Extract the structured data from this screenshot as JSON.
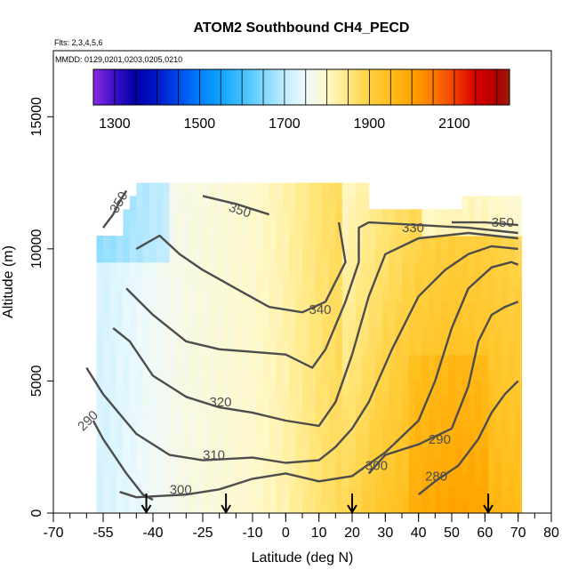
{
  "chart_data": {
    "type": "heatmap",
    "title": "ATOM2 Southbound CH4_PECD",
    "annotations": [
      "Flts: 2,3,4,5,6",
      "MMDD: 0129,0201,0203,0205,0210"
    ],
    "xlabel": "Latitude (deg N)",
    "ylabel": "Altitude (m)",
    "xlim": [
      -70,
      80
    ],
    "ylim": [
      0,
      17500
    ],
    "xticks": [
      -70,
      -55,
      -40,
      -25,
      -10,
      0,
      10,
      20,
      30,
      40,
      50,
      60,
      70,
      80
    ],
    "yticks": [
      0,
      5000,
      10000,
      15000
    ],
    "grid": false,
    "colorbar": {
      "ticks": [
        1300,
        1500,
        1700,
        1900,
        2100
      ],
      "range": [
        1250,
        2230
      ],
      "stops": [
        {
          "v": 1250,
          "c": "#8a2be2"
        },
        {
          "v": 1300,
          "c": "#3a10c8"
        },
        {
          "v": 1350,
          "c": "#0000a8"
        },
        {
          "v": 1400,
          "c": "#0018c8"
        },
        {
          "v": 1450,
          "c": "#0048e8"
        },
        {
          "v": 1500,
          "c": "#0080ff"
        },
        {
          "v": 1550,
          "c": "#10a4ff"
        },
        {
          "v": 1600,
          "c": "#40c0ff"
        },
        {
          "v": 1650,
          "c": "#80d8ff"
        },
        {
          "v": 1700,
          "c": "#c0ecff"
        },
        {
          "v": 1750,
          "c": "#eefafc"
        },
        {
          "v": 1800,
          "c": "#fff8c8"
        },
        {
          "v": 1850,
          "c": "#ffe880"
        },
        {
          "v": 1900,
          "c": "#ffd040"
        },
        {
          "v": 1950,
          "c": "#ffbe1c"
        },
        {
          "v": 2000,
          "c": "#ffa400"
        },
        {
          "v": 2050,
          "c": "#ff7800"
        },
        {
          "v": 2100,
          "c": "#f04000"
        },
        {
          "v": 2150,
          "c": "#d80000"
        },
        {
          "v": 2200,
          "c": "#b00000"
        },
        {
          "v": 2230,
          "c": "#a01c10"
        }
      ]
    },
    "colormap_lat": [
      -55,
      -45,
      -30,
      -10,
      0,
      10,
      20,
      30,
      40,
      50,
      60,
      70
    ],
    "colormap_value": [
      1725,
      1745,
      1775,
      1795,
      1820,
      1860,
      1890,
      1930,
      1960,
      1975,
      1970,
      1955
    ],
    "contours": [
      {
        "label": "280",
        "points": [
          [
            40,
            700
          ],
          [
            45,
            1200
          ],
          [
            52,
            1800
          ],
          [
            58,
            2800
          ],
          [
            62,
            3800
          ],
          [
            66,
            4500
          ],
          [
            70,
            5000
          ]
        ]
      },
      {
        "label": "290",
        "points": [
          [
            -58,
            3500
          ],
          [
            -55,
            2800
          ],
          [
            -48,
            1500
          ],
          [
            -43,
            700
          ],
          [
            -40,
            500
          ]
        ],
        "label2": "290"
      },
      {
        "label": "290",
        "points": [
          [
            25,
            1500
          ],
          [
            30,
            2200
          ],
          [
            40,
            2600
          ],
          [
            50,
            3200
          ],
          [
            55,
            4800
          ],
          [
            58,
            6500
          ],
          [
            62,
            7500
          ],
          [
            66,
            7800
          ],
          [
            70,
            8000
          ]
        ]
      },
      {
        "label": "300",
        "points": [
          [
            -50,
            800
          ],
          [
            -45,
            600
          ],
          [
            -30,
            700
          ],
          [
            -20,
            900
          ],
          [
            -10,
            1300
          ],
          [
            0,
            1500
          ],
          [
            10,
            1200
          ],
          [
            20,
            1400
          ],
          [
            30,
            2300
          ],
          [
            40,
            3500
          ],
          [
            45,
            5000
          ],
          [
            50,
            7000
          ],
          [
            55,
            8500
          ],
          [
            62,
            9300
          ],
          [
            68,
            9500
          ],
          [
            70,
            9400
          ]
        ]
      },
      {
        "label": "310",
        "points": [
          [
            -60,
            5500
          ],
          [
            -55,
            4500
          ],
          [
            -45,
            3000
          ],
          [
            -35,
            2200
          ],
          [
            -25,
            2000
          ],
          [
            -10,
            2100
          ],
          [
            0,
            1900
          ],
          [
            10,
            2000
          ],
          [
            15,
            2500
          ],
          [
            20,
            3200
          ],
          [
            25,
            4200
          ],
          [
            32,
            6200
          ],
          [
            40,
            8200
          ],
          [
            48,
            9200
          ],
          [
            55,
            9800
          ],
          [
            62,
            10100
          ],
          [
            70,
            10000
          ]
        ]
      },
      {
        "label": "320",
        "points": [
          [
            -52,
            7000
          ],
          [
            -47,
            6500
          ],
          [
            -40,
            5200
          ],
          [
            -30,
            4400
          ],
          [
            -20,
            4000
          ],
          [
            -10,
            3800
          ],
          [
            0,
            3500
          ],
          [
            10,
            3300
          ],
          [
            15,
            4200
          ],
          [
            20,
            6000
          ],
          [
            25,
            8200
          ],
          [
            30,
            9800
          ],
          [
            40,
            10400
          ],
          [
            55,
            10600
          ],
          [
            70,
            10400
          ]
        ]
      },
      {
        "label": "330",
        "points": [
          [
            -48,
            8500
          ],
          [
            -40,
            7500
          ],
          [
            -30,
            6500
          ],
          [
            -20,
            6200
          ],
          [
            -10,
            6100
          ],
          [
            0,
            6000
          ],
          [
            8,
            5500
          ],
          [
            12,
            6200
          ],
          [
            18,
            8000
          ],
          [
            22,
            9500
          ],
          [
            22,
            10800
          ],
          [
            25,
            11000
          ],
          [
            40,
            10900
          ],
          [
            55,
            10800
          ],
          [
            70,
            10600
          ]
        ]
      },
      {
        "label": "340",
        "points": [
          [
            -45,
            10000
          ],
          [
            -38,
            10500
          ],
          [
            -32,
            9800
          ],
          [
            -25,
            9200
          ],
          [
            -15,
            8500
          ],
          [
            -5,
            7800
          ],
          [
            5,
            7600
          ],
          [
            12,
            8000
          ],
          [
            18,
            9500
          ],
          [
            16,
            11000
          ]
        ]
      },
      {
        "label": "350",
        "points": [
          [
            -55,
            10800
          ],
          [
            -52,
            11300
          ],
          [
            -50,
            11800
          ],
          [
            -48,
            12200
          ]
        ]
      },
      {
        "label": "350",
        "points": [
          [
            -25,
            12000
          ],
          [
            -15,
            11700
          ],
          [
            -5,
            11300
          ]
        ]
      },
      {
        "label": "350",
        "points": [
          [
            50,
            11000
          ],
          [
            60,
            11000
          ],
          [
            70,
            10900
          ]
        ]
      }
    ],
    "contour_labels": [
      {
        "text": "350",
        "x": -52,
        "y": 11400,
        "rot": -60
      },
      {
        "text": "350",
        "x": -17,
        "y": 11600,
        "rot": 18
      },
      {
        "text": "330",
        "x": 35,
        "y": 10800,
        "rot": 0
      },
      {
        "text": "350",
        "x": 62,
        "y": 11000,
        "rot": 0
      },
      {
        "text": "340",
        "x": 7,
        "y": 7700,
        "rot": 0
      },
      {
        "text": "320",
        "x": -23,
        "y": 4200,
        "rot": 0
      },
      {
        "text": "310",
        "x": -25,
        "y": 2200,
        "rot": 0
      },
      {
        "text": "300",
        "x": -35,
        "y": 900,
        "rot": 0
      },
      {
        "text": "290",
        "x": -62,
        "y": 3200,
        "rot": -45
      },
      {
        "text": "300",
        "x": 24,
        "y": 1800,
        "rot": 0
      },
      {
        "text": "290",
        "x": 43,
        "y": 2800,
        "rot": 0
      },
      {
        "text": "280",
        "x": 42,
        "y": 1400,
        "rot": 0
      }
    ],
    "arrows_lat": [
      -42,
      -18,
      20,
      61
    ]
  }
}
